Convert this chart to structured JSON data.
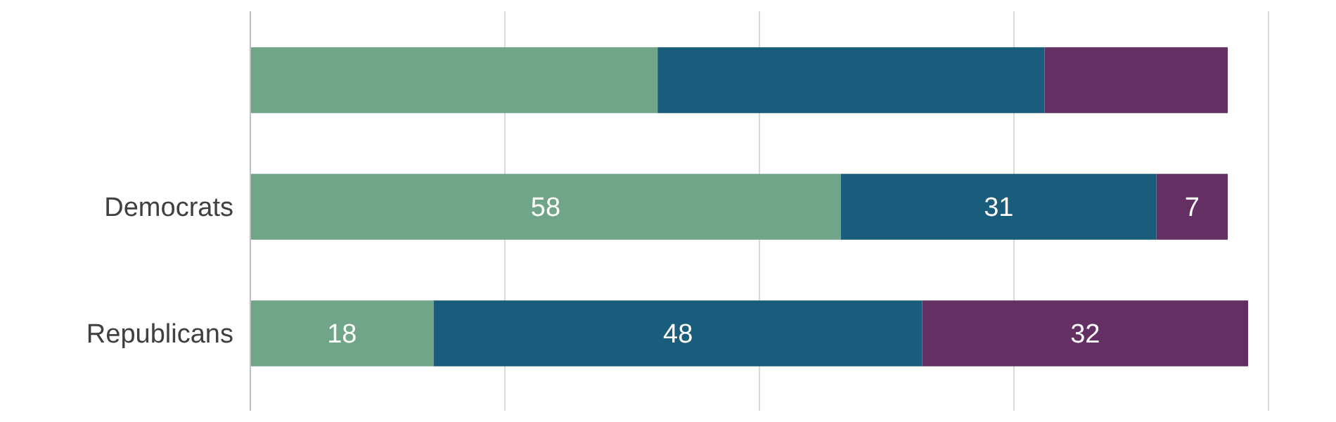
{
  "chart_data": {
    "type": "bar",
    "orientation": "horizontal",
    "stacked": true,
    "categories": [
      null,
      "Democrats",
      "Republicans"
    ],
    "series": [
      {
        "color": "#71a589",
        "values": [
          40,
          58,
          18
        ],
        "value_labels": [
          null,
          "58",
          "18"
        ]
      },
      {
        "color": "#1a5c7c",
        "values": [
          38,
          31,
          48
        ],
        "value_labels": [
          null,
          "31",
          "48"
        ]
      },
      {
        "color": "#642f62",
        "values": [
          18,
          7,
          32
        ],
        "value_labels": [
          null,
          "7",
          "32"
        ]
      }
    ],
    "xlim": [
      0,
      100
    ],
    "xticks": [
      {
        "value": 0,
        "label": null
      },
      {
        "value": 25,
        "label": null
      },
      {
        "value": 50,
        "label": null
      },
      {
        "value": 75,
        "label": null
      },
      {
        "value": 100,
        "label": null
      }
    ],
    "grid": "x",
    "tick_labels": "y"
  }
}
